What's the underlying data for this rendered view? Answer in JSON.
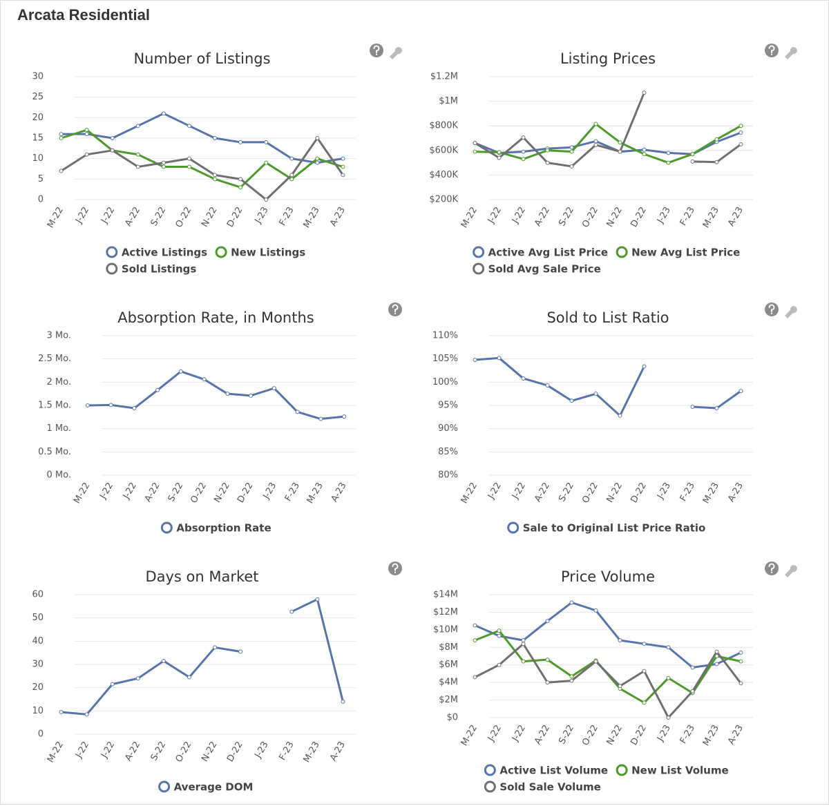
{
  "title": "Arcata Residential",
  "chart_data": [
    {
      "type": "line",
      "title": "Number of Listings",
      "categories": [
        "M-22",
        "J-22",
        "J-22",
        "A-22",
        "S-22",
        "O-22",
        "N-22",
        "D-22",
        "J-23",
        "F-23",
        "M-23",
        "A-23"
      ],
      "ylim": [
        0,
        30
      ],
      "yticks": [
        0,
        5,
        10,
        15,
        20,
        25,
        30
      ],
      "grid": true,
      "series": [
        {
          "name": "Active Listings",
          "color": "#5674aa",
          "values": [
            16,
            16,
            15,
            18,
            21,
            18,
            15,
            14,
            14,
            10,
            9,
            10
          ]
        },
        {
          "name": "New Listings",
          "color": "#4c9a2a",
          "values": [
            15,
            17,
            12,
            11,
            8,
            8,
            5,
            3,
            9,
            5,
            10,
            8
          ]
        },
        {
          "name": "Sold Listings",
          "color": "#6f6f6f",
          "values": [
            7,
            11,
            12,
            8,
            9,
            10,
            6,
            5,
            0,
            6,
            15,
            6
          ]
        }
      ]
    },
    {
      "type": "line",
      "title": "Listing Prices",
      "categories": [
        "M-22",
        "J-22",
        "J-22",
        "A-22",
        "S-22",
        "O-22",
        "N-22",
        "D-22",
        "J-23",
        "F-23",
        "M-23",
        "A-23"
      ],
      "ylim": [
        200000,
        1200000
      ],
      "yticks": [
        {
          "value": 200000,
          "label": "$200K"
        },
        {
          "value": 400000,
          "label": "$400K"
        },
        {
          "value": 600000,
          "label": "$600K"
        },
        {
          "value": 800000,
          "label": "$800K"
        },
        {
          "value": 1000000,
          "label": "$1M"
        },
        {
          "value": 1200000,
          "label": "$1.2M"
        }
      ],
      "grid": true,
      "series": [
        {
          "name": "Active Avg List Price",
          "color": "#5674aa",
          "values": [
            660000,
            580000,
            590000,
            615000,
            625000,
            675000,
            590000,
            605000,
            580000,
            570000,
            670000,
            745000
          ]
        },
        {
          "name": "New Avg List Price",
          "color": "#4c9a2a",
          "values": [
            590000,
            585000,
            530000,
            600000,
            590000,
            815000,
            665000,
            570000,
            500000,
            570000,
            690000,
            800000
          ]
        },
        {
          "name": "Sold Avg Sale Price",
          "color": "#6f6f6f",
          "values": [
            660000,
            540000,
            705000,
            500000,
            470000,
            645000,
            590000,
            1070000,
            null,
            510000,
            505000,
            650000
          ]
        }
      ]
    },
    {
      "type": "line",
      "title": "Absorption Rate, in Months",
      "categories": [
        "M-22",
        "J-22",
        "J-22",
        "A-22",
        "S-22",
        "O-22",
        "N-22",
        "D-22",
        "J-23",
        "F-23",
        "M-23",
        "A-23"
      ],
      "ylim": [
        0,
        3
      ],
      "yticks": [
        {
          "value": 0,
          "label": "0 Mo."
        },
        {
          "value": 0.5,
          "label": "0.5 Mo."
        },
        {
          "value": 1,
          "label": "1 Mo."
        },
        {
          "value": 1.5,
          "label": "1.5 Mo."
        },
        {
          "value": 2,
          "label": "2 Mo."
        },
        {
          "value": 2.5,
          "label": "2.5 Mo."
        },
        {
          "value": 3,
          "label": "3 Mo."
        }
      ],
      "grid": true,
      "series": [
        {
          "name": "Absorption Rate",
          "color": "#5674aa",
          "values": [
            1.5,
            1.51,
            1.44,
            1.83,
            2.23,
            2.06,
            1.75,
            1.71,
            1.87,
            1.36,
            1.21,
            1.26
          ]
        }
      ]
    },
    {
      "type": "line",
      "title": "Sold to List Ratio",
      "categories": [
        "M-22",
        "J-22",
        "J-22",
        "A-22",
        "S-22",
        "O-22",
        "N-22",
        "D-22",
        "J-23",
        "F-23",
        "M-23",
        "A-23"
      ],
      "ylim": [
        80,
        110
      ],
      "yticks": [
        {
          "value": 80,
          "label": "80%"
        },
        {
          "value": 85,
          "label": "85%"
        },
        {
          "value": 90,
          "label": "90%"
        },
        {
          "value": 95,
          "label": "95%"
        },
        {
          "value": 100,
          "label": "100%"
        },
        {
          "value": 105,
          "label": "105%"
        },
        {
          "value": 110,
          "label": "110%"
        }
      ],
      "grid": true,
      "series": [
        {
          "name": "Sale to Original List Price Ratio",
          "color": "#5674aa",
          "values": [
            104.8,
            105.2,
            100.8,
            99.3,
            96,
            97.5,
            92.8,
            103.4,
            null,
            94.7,
            94.4,
            98.1
          ]
        }
      ]
    },
    {
      "type": "line",
      "title": "Days on Market",
      "categories": [
        "M-22",
        "J-22",
        "J-22",
        "A-22",
        "S-22",
        "O-22",
        "N-22",
        "D-22",
        "J-23",
        "F-23",
        "M-23",
        "A-23"
      ],
      "ylim": [
        0,
        60
      ],
      "yticks": [
        0,
        10,
        20,
        30,
        40,
        50,
        60
      ],
      "grid": true,
      "series": [
        {
          "name": "Average DOM",
          "color": "#5674aa",
          "values": [
            9.5,
            8.5,
            21.5,
            24,
            31.5,
            24.5,
            37.3,
            35.5,
            null,
            52.7,
            58,
            14
          ]
        }
      ]
    },
    {
      "type": "line",
      "title": "Price Volume",
      "categories": [
        "M-22",
        "J-22",
        "J-22",
        "A-22",
        "S-22",
        "O-22",
        "N-22",
        "D-22",
        "J-23",
        "F-23",
        "M-23",
        "A-23"
      ],
      "ylim": [
        0,
        14000000
      ],
      "yticks": [
        {
          "value": 0,
          "label": "$0"
        },
        {
          "value": 2000000,
          "label": "$2M"
        },
        {
          "value": 4000000,
          "label": "$4M"
        },
        {
          "value": 6000000,
          "label": "$6M"
        },
        {
          "value": 8000000,
          "label": "$8M"
        },
        {
          "value": 10000000,
          "label": "$10M"
        },
        {
          "value": 12000000,
          "label": "$12M"
        },
        {
          "value": 14000000,
          "label": "$14M"
        }
      ],
      "grid": true,
      "series": [
        {
          "name": "Active List Volume",
          "color": "#5674aa",
          "values": [
            10500000,
            9300000,
            8800000,
            11000000,
            13100000,
            12200000,
            8800000,
            8400000,
            8000000,
            5700000,
            6100000,
            7400000
          ]
        },
        {
          "name": "New List Volume",
          "color": "#4c9a2a",
          "values": [
            8800000,
            9900000,
            6400000,
            6600000,
            4700000,
            6500000,
            3300000,
            1700000,
            4500000,
            2800000,
            7000000,
            6400000
          ]
        },
        {
          "name": "Sold Sale Volume",
          "color": "#6f6f6f",
          "values": [
            4600000,
            6000000,
            8400000,
            4000000,
            4200000,
            6400000,
            3600000,
            5300000,
            0,
            3000000,
            7500000,
            3900000
          ]
        }
      ]
    }
  ]
}
